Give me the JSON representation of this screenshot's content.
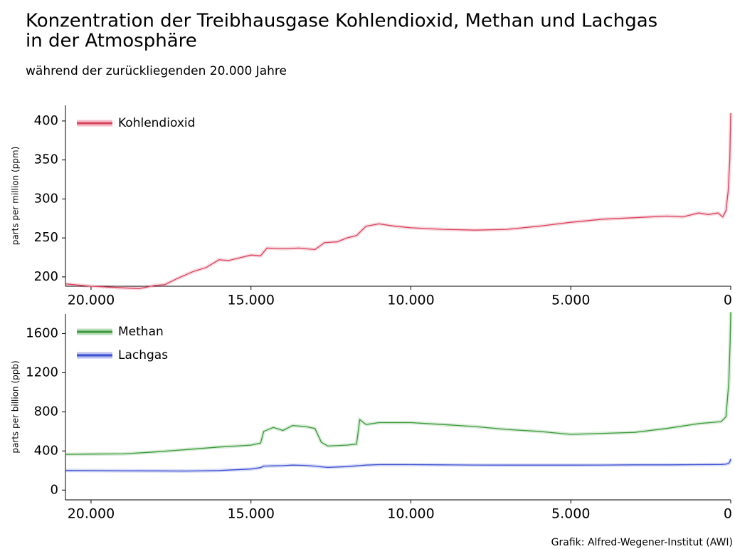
{
  "title": [
    "Konzentration der Treibhausgase Kohlendioxid, Methan und Lachgas",
    "in der Atmosphäre"
  ],
  "subtitle": "während der zurückliegenden 20.000 Jahre",
  "credit": "Grafik: Alfred-Wegener-Institut (AWI)",
  "chart_data": [
    {
      "type": "line",
      "y_label": "parts per million (ppm)",
      "legend": "upper left",
      "grid": false,
      "xlim": [
        20800,
        0
      ],
      "ylim": [
        188,
        420
      ],
      "xticks": [
        {
          "value": 20000,
          "label": "20.000"
        },
        {
          "value": 15000,
          "label": "15.000"
        },
        {
          "value": 10000,
          "label": "10.000"
        },
        {
          "value": 5000,
          "label": "5.000"
        },
        0
      ],
      "yticks": [
        200,
        250,
        300,
        350,
        400
      ],
      "x": [
        20800,
        20000,
        19000,
        18500,
        18000,
        17700,
        17300,
        16800,
        16400,
        16000,
        15700,
        15300,
        15000,
        14700,
        14500,
        14000,
        13500,
        13000,
        12700,
        12300,
        12000,
        11700,
        11400,
        11000,
        10500,
        10000,
        9000,
        8000,
        7000,
        6000,
        5000,
        4000,
        3000,
        2000,
        1500,
        1000,
        700,
        400,
        250,
        150,
        80,
        30,
        0
      ],
      "series": [
        {
          "name": "Kohlendioxid",
          "color": "#d9435e",
          "values": [
            191,
            188,
            186,
            185,
            189,
            190,
            198,
            207,
            212,
            222,
            221,
            225,
            228,
            227,
            237,
            236,
            237,
            235,
            244,
            245,
            250,
            253,
            265,
            268,
            265,
            263,
            261,
            260,
            261,
            265,
            270,
            274,
            276,
            278,
            277,
            282,
            280,
            282,
            277,
            285,
            310,
            350,
            410
          ]
        }
      ]
    },
    {
      "type": "line",
      "y_label": "parts per billion (ppb)",
      "legend": "upper left",
      "grid": false,
      "xlim": [
        20800,
        0
      ],
      "ylim": [
        -100,
        1800
      ],
      "xticks": [
        {
          "value": 20000,
          "label": "20.000"
        },
        {
          "value": 15000,
          "label": "15.000"
        },
        {
          "value": 10000,
          "label": "10.000"
        },
        {
          "value": 5000,
          "label": "5.000"
        },
        0
      ],
      "yticks": [
        0,
        400,
        800,
        1200,
        1600
      ],
      "x": [
        20800,
        20000,
        19000,
        18000,
        17000,
        16000,
        15000,
        14700,
        14600,
        14300,
        14000,
        13700,
        13300,
        13000,
        12800,
        12600,
        12000,
        11700,
        11600,
        11400,
        11000,
        10000,
        9000,
        8000,
        7000,
        6000,
        5000,
        4000,
        3000,
        2000,
        1000,
        300,
        150,
        60,
        20,
        0
      ],
      "series": [
        {
          "name": "Methan",
          "color": "#3a9a3a",
          "values": [
            365,
            368,
            370,
            390,
            415,
            440,
            460,
            480,
            600,
            640,
            610,
            660,
            650,
            630,
            490,
            450,
            460,
            470,
            720,
            670,
            690,
            690,
            670,
            650,
            620,
            600,
            570,
            580,
            590,
            630,
            680,
            700,
            750,
            1100,
            1500,
            1820
          ]
        },
        {
          "name": "Lachgas",
          "color": "#3b4fd0",
          "values": [
            200,
            199,
            198,
            196,
            195,
            200,
            215,
            230,
            245,
            248,
            250,
            255,
            252,
            245,
            238,
            232,
            240,
            248,
            250,
            255,
            260,
            260,
            258,
            256,
            255,
            255,
            255,
            256,
            258,
            258,
            260,
            262,
            265,
            275,
            295,
            320
          ]
        }
      ]
    }
  ]
}
